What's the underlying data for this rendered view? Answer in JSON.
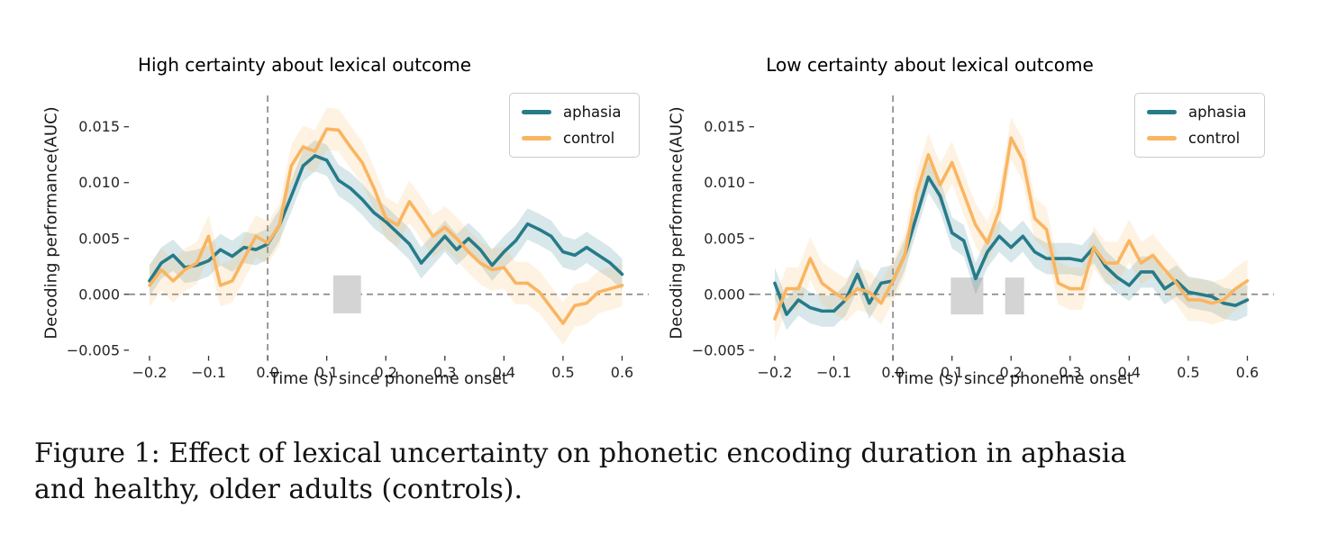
{
  "caption": {
    "line1": "Figure 1: Effect of lexical uncertainty on phonetic encoding duration in aphasia",
    "line2": "and healthy, older adults (controls)."
  },
  "colors": {
    "aphasia": "#267b8a",
    "control": "#fab561",
    "significance": "#d4d4d4",
    "reference_line": "#8c8c8c",
    "tick": "#333333"
  },
  "chart_data": [
    {
      "type": "line",
      "title": "High certainty about lexical outcome",
      "xlabel": "Time (s) since phoneme onset",
      "ylabel": "Decoding performance(AUC)",
      "xlim": [
        -0.235,
        0.645
      ],
      "ylim": [
        -0.0055,
        0.0178
      ],
      "grid": false,
      "legend_position": "upper right",
      "reference_lines": {
        "vertical_x": 0.0,
        "horizontal_y": 0.0
      },
      "xticks": [
        -0.2,
        -0.1,
        0.0,
        0.1,
        0.2,
        0.3,
        0.4,
        0.5,
        0.6
      ],
      "xtick_labels": [
        "−0.2",
        "−0.1",
        "0.0",
        "0.1",
        "0.2",
        "0.3",
        "0.4",
        "0.5",
        "0.6"
      ],
      "yticks": [
        -0.005,
        0.0,
        0.005,
        0.01,
        0.015
      ],
      "ytick_labels": [
        "−0.005",
        "0.000",
        "0.005",
        "0.010",
        "0.015"
      ],
      "x": [
        -0.2,
        -0.18,
        -0.16,
        -0.14,
        -0.12,
        -0.1,
        -0.08,
        -0.06,
        -0.04,
        -0.02,
        0.0,
        0.02,
        0.04,
        0.06,
        0.08,
        0.1,
        0.12,
        0.14,
        0.16,
        0.18,
        0.2,
        0.22,
        0.24,
        0.26,
        0.28,
        0.3,
        0.32,
        0.34,
        0.36,
        0.38,
        0.4,
        0.42,
        0.44,
        0.46,
        0.48,
        0.5,
        0.52,
        0.54,
        0.56,
        0.58,
        0.6
      ],
      "series": [
        {
          "name": "aphasia",
          "color": "#267b8a",
          "band_halfwidth": 0.0014,
          "values": [
            0.0012,
            0.0028,
            0.0035,
            0.0024,
            0.0026,
            0.003,
            0.004,
            0.0034,
            0.0042,
            0.004,
            0.0045,
            0.0062,
            0.0088,
            0.0115,
            0.0124,
            0.012,
            0.0102,
            0.0095,
            0.0085,
            0.0073,
            0.0065,
            0.0055,
            0.0045,
            0.0028,
            0.004,
            0.0052,
            0.004,
            0.005,
            0.004,
            0.0026,
            0.0038,
            0.0048,
            0.0063,
            0.0058,
            0.0052,
            0.0038,
            0.0035,
            0.0042,
            0.0035,
            0.0028,
            0.0018
          ]
        },
        {
          "name": "control",
          "color": "#fab561",
          "band_halfwidth": 0.0019,
          "values": [
            0.0008,
            0.0022,
            0.0012,
            0.0022,
            0.0028,
            0.0052,
            0.0008,
            0.0012,
            0.0032,
            0.0052,
            0.0046,
            0.0062,
            0.0115,
            0.0132,
            0.0128,
            0.0148,
            0.0147,
            0.0132,
            0.0118,
            0.0095,
            0.0068,
            0.0062,
            0.0083,
            0.0068,
            0.0052,
            0.006,
            0.005,
            0.0038,
            0.0028,
            0.0022,
            0.0024,
            0.001,
            0.001,
            0.0002,
            -0.0012,
            -0.0026,
            -0.001,
            -0.0008,
            0.0002,
            0.0005,
            0.0008
          ]
        }
      ],
      "significance_rects": [
        {
          "x0": 0.111,
          "x1": 0.158,
          "y0": -0.0017,
          "y1": 0.0017
        }
      ]
    },
    {
      "type": "line",
      "title": "Low certainty about lexical outcome",
      "xlabel": "Time (s) since phoneme onset",
      "ylabel": "Decoding performance(AUC)",
      "xlim": [
        -0.235,
        0.645
      ],
      "ylim": [
        -0.0055,
        0.0178
      ],
      "grid": false,
      "legend_position": "upper right",
      "reference_lines": {
        "vertical_x": 0.0,
        "horizontal_y": 0.0
      },
      "xticks": [
        -0.2,
        -0.1,
        0.0,
        0.1,
        0.2,
        0.3,
        0.4,
        0.5,
        0.6
      ],
      "xtick_labels": [
        "−0.2",
        "−0.1",
        "0.0",
        "0.1",
        "0.2",
        "0.3",
        "0.4",
        "0.5",
        "0.6"
      ],
      "yticks": [
        -0.005,
        0.0,
        0.005,
        0.01,
        0.015
      ],
      "ytick_labels": [
        "−0.005",
        "0.000",
        "0.005",
        "0.010",
        "0.015"
      ],
      "x": [
        -0.2,
        -0.18,
        -0.16,
        -0.14,
        -0.12,
        -0.1,
        -0.08,
        -0.06,
        -0.04,
        -0.02,
        0.0,
        0.02,
        0.04,
        0.06,
        0.08,
        0.1,
        0.12,
        0.14,
        0.16,
        0.18,
        0.2,
        0.22,
        0.24,
        0.26,
        0.28,
        0.3,
        0.32,
        0.34,
        0.36,
        0.38,
        0.4,
        0.42,
        0.44,
        0.46,
        0.48,
        0.5,
        0.52,
        0.54,
        0.56,
        0.58,
        0.6
      ],
      "series": [
        {
          "name": "aphasia",
          "color": "#267b8a",
          "band_halfwidth": 0.0014,
          "values": [
            0.001,
            -0.0018,
            -0.0005,
            -0.0012,
            -0.0015,
            -0.0015,
            -0.0005,
            0.0018,
            -0.0008,
            0.001,
            0.0012,
            0.0035,
            0.007,
            0.0105,
            0.0088,
            0.0055,
            0.0048,
            0.0014,
            0.0038,
            0.0052,
            0.0042,
            0.0052,
            0.0038,
            0.0032,
            0.0032,
            0.0032,
            0.003,
            0.0042,
            0.0025,
            0.0015,
            0.0008,
            0.002,
            0.002,
            0.0005,
            0.0012,
            0.0002,
            0.0,
            -0.0002,
            -0.0008,
            -0.001,
            -0.0005
          ]
        },
        {
          "name": "control",
          "color": "#fab561",
          "band_halfwidth": 0.0019,
          "values": [
            -0.0022,
            0.0005,
            0.0005,
            0.0032,
            0.001,
            0.0002,
            -0.0005,
            0.0005,
            0.0002,
            -0.0008,
            0.0012,
            0.0035,
            0.009,
            0.0125,
            0.0098,
            0.0118,
            0.009,
            0.0062,
            0.0046,
            0.0075,
            0.014,
            0.012,
            0.0068,
            0.0058,
            0.001,
            0.0005,
            0.0005,
            0.0042,
            0.0028,
            0.0028,
            0.0048,
            0.0028,
            0.0035,
            0.0022,
            0.001,
            -0.0005,
            -0.0005,
            -0.0008,
            -0.0005,
            0.0005,
            0.0012
          ]
        }
      ],
      "significance_rects": [
        {
          "x0": 0.098,
          "x1": 0.153,
          "y0": -0.0018,
          "y1": 0.0015
        },
        {
          "x0": 0.19,
          "x1": 0.222,
          "y0": -0.0018,
          "y1": 0.0015
        }
      ]
    }
  ]
}
